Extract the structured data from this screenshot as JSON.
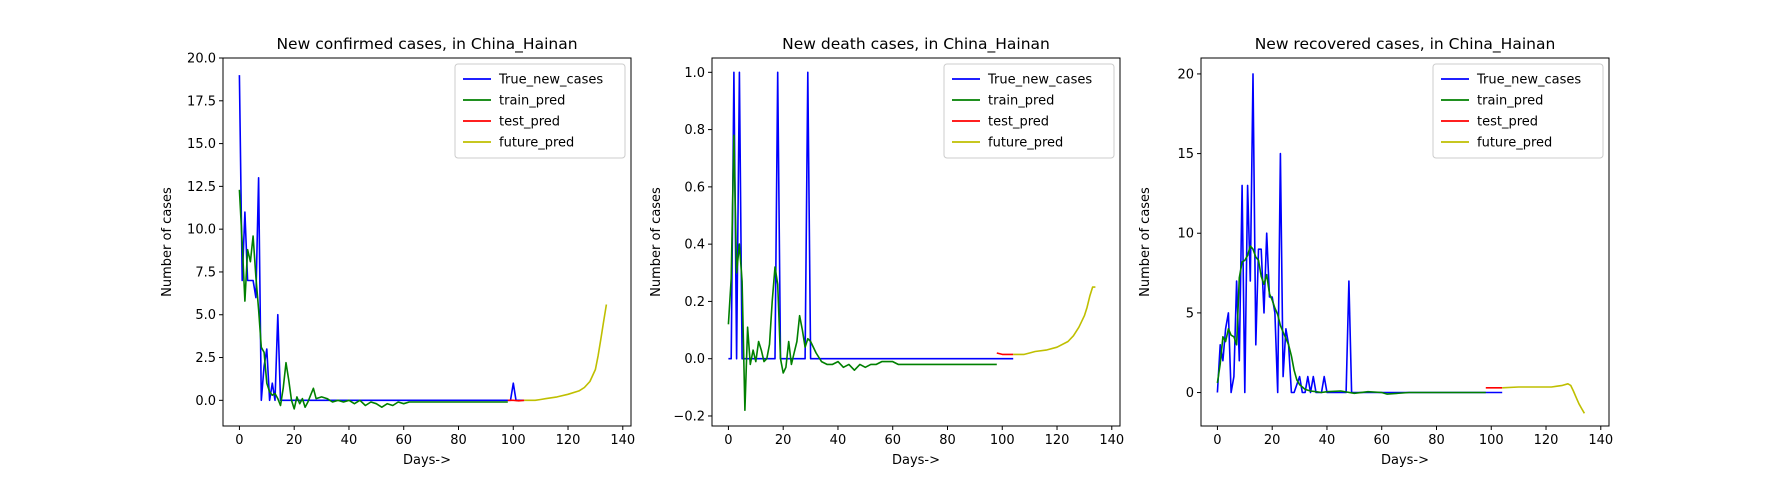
{
  "colors": {
    "True_new_cases": "#0000ff",
    "train_pred": "#008000",
    "test_pred": "#ff0000",
    "future_pred": "#bfbf00"
  },
  "chart_data": [
    {
      "type": "line",
      "title": "New confirmed cases, in China_Hainan",
      "xlabel": "Days->",
      "ylabel": "Number of cases",
      "xlim": [
        -6,
        143
      ],
      "ylim": [
        -1.5,
        20.0
      ],
      "xticks": [
        0,
        20,
        40,
        60,
        80,
        100,
        120,
        140
      ],
      "xtick_labels": [
        "0",
        "20",
        "40",
        "60",
        "80",
        "100",
        "120",
        "140"
      ],
      "yticks": [
        0,
        2.5,
        5,
        7.5,
        10,
        12.5,
        15,
        17.5,
        20
      ],
      "ytick_labels": [
        "0.0",
        "2.5",
        "5.0",
        "7.5",
        "10.0",
        "12.5",
        "15.0",
        "17.5",
        "20.0"
      ],
      "grid": false,
      "legend": {
        "position": "top-right",
        "entries": [
          "True_new_cases",
          "train_pred",
          "test_pred",
          "future_pred"
        ]
      },
      "series": [
        {
          "name": "True_new_cases",
          "color": "#0000ff",
          "x": [
            0,
            1,
            2,
            3,
            4,
            5,
            6,
            7,
            8,
            9,
            10,
            11,
            12,
            13,
            14,
            15,
            16,
            20,
            40,
            60,
            80,
            98,
            99,
            100,
            101,
            104
          ],
          "y": [
            19,
            7,
            11,
            7,
            7,
            7,
            6,
            13,
            0,
            2,
            3,
            0,
            1,
            0,
            5,
            0,
            0,
            0,
            0,
            0,
            0,
            0,
            0,
            1,
            0,
            0
          ]
        },
        {
          "name": "train_pred",
          "color": "#008000",
          "x": [
            0,
            1,
            2,
            3,
            4,
            5,
            6,
            7,
            8,
            9,
            10,
            11,
            12,
            13,
            14,
            15,
            16,
            17,
            18,
            19,
            20,
            21,
            22,
            23,
            24,
            25,
            26,
            27,
            28,
            30,
            32,
            34,
            36,
            38,
            40,
            42,
            44,
            46,
            48,
            50,
            52,
            54,
            56,
            58,
            60,
            62,
            70,
            80,
            90,
            98
          ],
          "y": [
            12.3,
            9.2,
            5.8,
            8.8,
            8.1,
            9.6,
            7.2,
            5.3,
            3.1,
            2.8,
            1.0,
            0.5,
            0.3,
            0.4,
            0.1,
            -0.3,
            0.7,
            2.2,
            1.2,
            0.0,
            -0.5,
            0.2,
            -0.2,
            0.1,
            -0.4,
            -0.1,
            0.3,
            0.7,
            0.1,
            0.2,
            0.1,
            -0.1,
            0.0,
            -0.1,
            0.0,
            -0.2,
            0.0,
            -0.3,
            -0.1,
            -0.2,
            -0.4,
            -0.2,
            -0.3,
            -0.1,
            -0.2,
            -0.1,
            -0.1,
            -0.1,
            -0.1,
            -0.1
          ]
        },
        {
          "name": "test_pred",
          "color": "#ff0000",
          "x": [
            98,
            100,
            102,
            104
          ],
          "y": [
            0.0,
            0.0,
            -0.03,
            0.0
          ]
        },
        {
          "name": "future_pred",
          "color": "#bfbf00",
          "x": [
            104,
            108,
            110,
            112,
            116,
            120,
            124,
            126,
            128,
            130,
            131,
            132,
            133,
            134
          ],
          "y": [
            0.0,
            0.0,
            0.05,
            0.1,
            0.2,
            0.35,
            0.55,
            0.75,
            1.1,
            1.8,
            2.6,
            3.6,
            4.6,
            5.6
          ]
        }
      ]
    },
    {
      "type": "line",
      "title": "New death cases, in China_Hainan",
      "xlabel": "Days->",
      "ylabel": "Number of cases",
      "xlim": [
        -6,
        143
      ],
      "ylim": [
        -0.235,
        1.05
      ],
      "xticks": [
        0,
        20,
        40,
        60,
        80,
        100,
        120,
        140
      ],
      "xtick_labels": [
        "0",
        "20",
        "40",
        "60",
        "80",
        "100",
        "120",
        "140"
      ],
      "yticks": [
        -0.2,
        0.0,
        0.2,
        0.4,
        0.6,
        0.8,
        1.0
      ],
      "ytick_labels": [
        "−0.2",
        "0.0",
        "0.2",
        "0.4",
        "0.6",
        "0.8",
        "1.0"
      ],
      "grid": false,
      "legend": {
        "position": "top-right",
        "entries": [
          "True_new_cases",
          "train_pred",
          "test_pred",
          "future_pred"
        ]
      },
      "series": [
        {
          "name": "True_new_cases",
          "color": "#0000ff",
          "x": [
            0,
            1,
            2,
            3,
            4,
            5,
            6,
            7,
            17,
            18,
            19,
            28,
            29,
            30,
            40,
            60,
            80,
            104
          ],
          "y": [
            0,
            0,
            1,
            0,
            1,
            0,
            0,
            0,
            0,
            1,
            0,
            0,
            1,
            0,
            0,
            0,
            0,
            0
          ]
        },
        {
          "name": "train_pred",
          "color": "#008000",
          "x": [
            0,
            1,
            2,
            3,
            4,
            5,
            6,
            7,
            8,
            9,
            10,
            11,
            12,
            13,
            14,
            15,
            16,
            17,
            18,
            19,
            20,
            21,
            22,
            23,
            24,
            25,
            26,
            27,
            28,
            29,
            30,
            32,
            34,
            36,
            38,
            40,
            42,
            44,
            46,
            48,
            50,
            52,
            54,
            56,
            58,
            60,
            62,
            70,
            80,
            90,
            98
          ],
          "y": [
            0.12,
            0.28,
            0.78,
            0.3,
            0.4,
            0.27,
            -0.18,
            0.11,
            -0.02,
            0.03,
            -0.01,
            0.06,
            0.03,
            -0.01,
            0.0,
            0.05,
            0.2,
            0.32,
            0.26,
            0.0,
            -0.05,
            -0.03,
            0.06,
            -0.02,
            0.02,
            0.06,
            0.15,
            0.1,
            0.04,
            0.07,
            0.06,
            0.02,
            -0.01,
            -0.02,
            -0.02,
            -0.01,
            -0.03,
            -0.02,
            -0.04,
            -0.02,
            -0.03,
            -0.02,
            -0.02,
            -0.01,
            -0.01,
            -0.01,
            -0.02,
            -0.02,
            -0.02,
            -0.02,
            -0.02
          ]
        },
        {
          "name": "test_pred",
          "color": "#ff0000",
          "x": [
            98,
            100,
            102,
            104
          ],
          "y": [
            0.02,
            0.015,
            0.015,
            0.015
          ]
        },
        {
          "name": "future_pred",
          "color": "#bfbf00",
          "x": [
            104,
            108,
            110,
            112,
            116,
            120,
            124,
            126,
            128,
            130,
            131,
            132,
            133,
            134
          ],
          "y": [
            0.015,
            0.015,
            0.02,
            0.025,
            0.03,
            0.04,
            0.06,
            0.08,
            0.11,
            0.15,
            0.18,
            0.22,
            0.25,
            0.25
          ]
        }
      ]
    },
    {
      "type": "line",
      "title": "New recovered cases, in China_Hainan",
      "xlabel": "Days->",
      "ylabel": "Number of cases",
      "xlim": [
        -6,
        143
      ],
      "ylim": [
        -2.1,
        21.0
      ],
      "xticks": [
        0,
        20,
        40,
        60,
        80,
        100,
        120,
        140
      ],
      "xtick_labels": [
        "0",
        "20",
        "40",
        "60",
        "80",
        "100",
        "120",
        "140"
      ],
      "yticks": [
        0,
        5,
        10,
        15,
        20
      ],
      "ytick_labels": [
        "0",
        "5",
        "10",
        "15",
        "20"
      ],
      "grid": false,
      "legend": {
        "position": "top-right",
        "entries": [
          "True_new_cases",
          "train_pred",
          "test_pred",
          "future_pred"
        ]
      },
      "series": [
        {
          "name": "True_new_cases",
          "color": "#0000ff",
          "x": [
            0,
            1,
            2,
            3,
            4,
            5,
            6,
            7,
            8,
            9,
            10,
            11,
            12,
            13,
            14,
            15,
            16,
            17,
            18,
            19,
            20,
            21,
            22,
            23,
            24,
            25,
            26,
            27,
            28,
            30,
            31,
            32,
            33,
            34,
            35,
            36,
            37,
            38,
            39,
            40,
            47,
            48,
            49,
            55,
            60,
            80,
            104
          ],
          "y": [
            0,
            3,
            2,
            4,
            5,
            0,
            1,
            7,
            2,
            13,
            0,
            13,
            7,
            20,
            3,
            9,
            9,
            5,
            10,
            6,
            6,
            5,
            0,
            15,
            1,
            4,
            3,
            0,
            0,
            1,
            0,
            0,
            1,
            0,
            1,
            0,
            0,
            0,
            1,
            0,
            0,
            7,
            0,
            0,
            0,
            0,
            0
          ]
        },
        {
          "name": "train_pred",
          "color": "#008000",
          "x": [
            0,
            1,
            2,
            3,
            4,
            5,
            6,
            7,
            8,
            9,
            10,
            11,
            12,
            13,
            14,
            15,
            16,
            17,
            18,
            19,
            20,
            21,
            22,
            23,
            24,
            25,
            26,
            27,
            28,
            29,
            30,
            32,
            34,
            36,
            38,
            40,
            45,
            50,
            55,
            60,
            62,
            70,
            80,
            90,
            98
          ],
          "y": [
            0.6,
            1.8,
            3.5,
            3.2,
            4.0,
            3.6,
            3.5,
            3.0,
            7.2,
            8.2,
            8.3,
            8.6,
            9.2,
            9.0,
            8.5,
            8.3,
            7.3,
            6.8,
            7.4,
            6.2,
            5.8,
            5.3,
            4.9,
            4.2,
            3.8,
            3.4,
            3.0,
            2.3,
            1.4,
            0.8,
            0.5,
            0.2,
            0.1,
            0.05,
            0.0,
            0.05,
            0.1,
            -0.05,
            0.05,
            0.0,
            -0.1,
            0.0,
            0.0,
            0.0,
            0.0
          ]
        },
        {
          "name": "test_pred",
          "color": "#ff0000",
          "x": [
            98,
            100,
            102,
            104
          ],
          "y": [
            0.3,
            0.3,
            0.3,
            0.3
          ]
        },
        {
          "name": "future_pred",
          "color": "#bfbf00",
          "x": [
            104,
            110,
            114,
            118,
            122,
            124,
            126,
            128,
            129,
            130,
            131,
            132,
            133,
            134
          ],
          "y": [
            0.3,
            0.35,
            0.35,
            0.35,
            0.35,
            0.4,
            0.45,
            0.55,
            0.45,
            0.1,
            -0.3,
            -0.7,
            -1.0,
            -1.3
          ]
        }
      ]
    }
  ]
}
